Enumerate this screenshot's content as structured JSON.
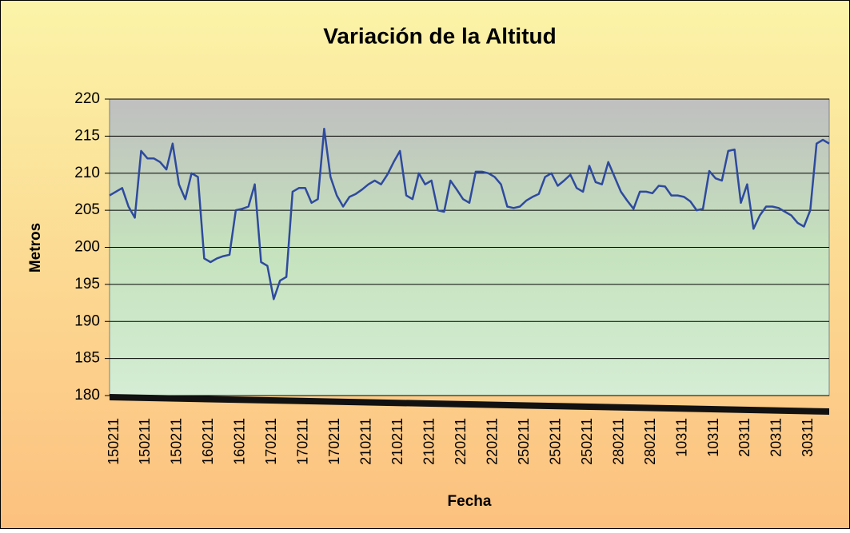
{
  "chart_data": {
    "type": "line",
    "title": "Variación de la Altitud",
    "x_label": "Fecha",
    "y_label": "Metros",
    "categories": [
      "150211",
      null,
      null,
      null,
      null,
      "150211",
      null,
      null,
      null,
      null,
      "150211",
      null,
      null,
      null,
      null,
      "160211",
      null,
      null,
      null,
      null,
      "160211",
      null,
      null,
      null,
      null,
      "170211",
      null,
      null,
      null,
      null,
      "170211",
      null,
      null,
      null,
      null,
      "170211",
      null,
      null,
      null,
      null,
      "210211",
      null,
      null,
      null,
      null,
      "210211",
      null,
      null,
      null,
      null,
      "210211",
      null,
      null,
      null,
      null,
      "220211",
      null,
      null,
      null,
      null,
      "220211",
      null,
      null,
      null,
      null,
      "250211",
      null,
      null,
      null,
      null,
      "250211",
      null,
      null,
      null,
      null,
      "250211",
      null,
      null,
      null,
      null,
      "280211",
      null,
      null,
      null,
      null,
      "280211",
      null,
      null,
      null,
      null,
      "10311",
      null,
      null,
      null,
      null,
      "10311",
      null,
      null,
      null,
      null,
      "20311",
      null,
      null,
      null,
      null,
      "20311",
      null,
      null,
      null,
      null,
      "30311",
      null,
      null,
      null,
      null
    ],
    "series": [
      {
        "name": "Altitud",
        "color": "#2e4a9e",
        "values": [
          207,
          207.5,
          208,
          205.5,
          204,
          213,
          212,
          212,
          211.5,
          210.5,
          214,
          208.5,
          206.5,
          210,
          209.5,
          198.5,
          198,
          198.5,
          198.8,
          199,
          205,
          205.2,
          205.5,
          208.5,
          198,
          197.5,
          193,
          195.5,
          196,
          207.5,
          208,
          208,
          206,
          206.5,
          216,
          209.5,
          207,
          205.5,
          206.8,
          207.2,
          207.8,
          208.5,
          209,
          208.5,
          209.8,
          211.5,
          213,
          207,
          206.5,
          210,
          208.5,
          209,
          205,
          204.8,
          209,
          207.8,
          206.5,
          206,
          210.2,
          210.2,
          210,
          209.5,
          208.5,
          205.5,
          205.3,
          205.5,
          206.3,
          206.8,
          207.2,
          209.5,
          210,
          208.3,
          209,
          209.8,
          208,
          207.5,
          211,
          208.8,
          208.5,
          211.5,
          209.5,
          207.5,
          206.3,
          205.2,
          207.5,
          207.5,
          207.3,
          208.3,
          208.2,
          207,
          207,
          206.8,
          206.2,
          205,
          205.2,
          210.3,
          209.3,
          209,
          213,
          213.2,
          206,
          208.5,
          202.5,
          204.3,
          205.5,
          205.5,
          205.3,
          204.8,
          204.3,
          203.3,
          202.8,
          205,
          214,
          214.5,
          214
        ]
      }
    ],
    "ylim": [
      180,
      220
    ],
    "yticks": [
      180,
      185,
      190,
      195,
      200,
      205,
      210,
      215,
      220
    ],
    "grid": true
  }
}
